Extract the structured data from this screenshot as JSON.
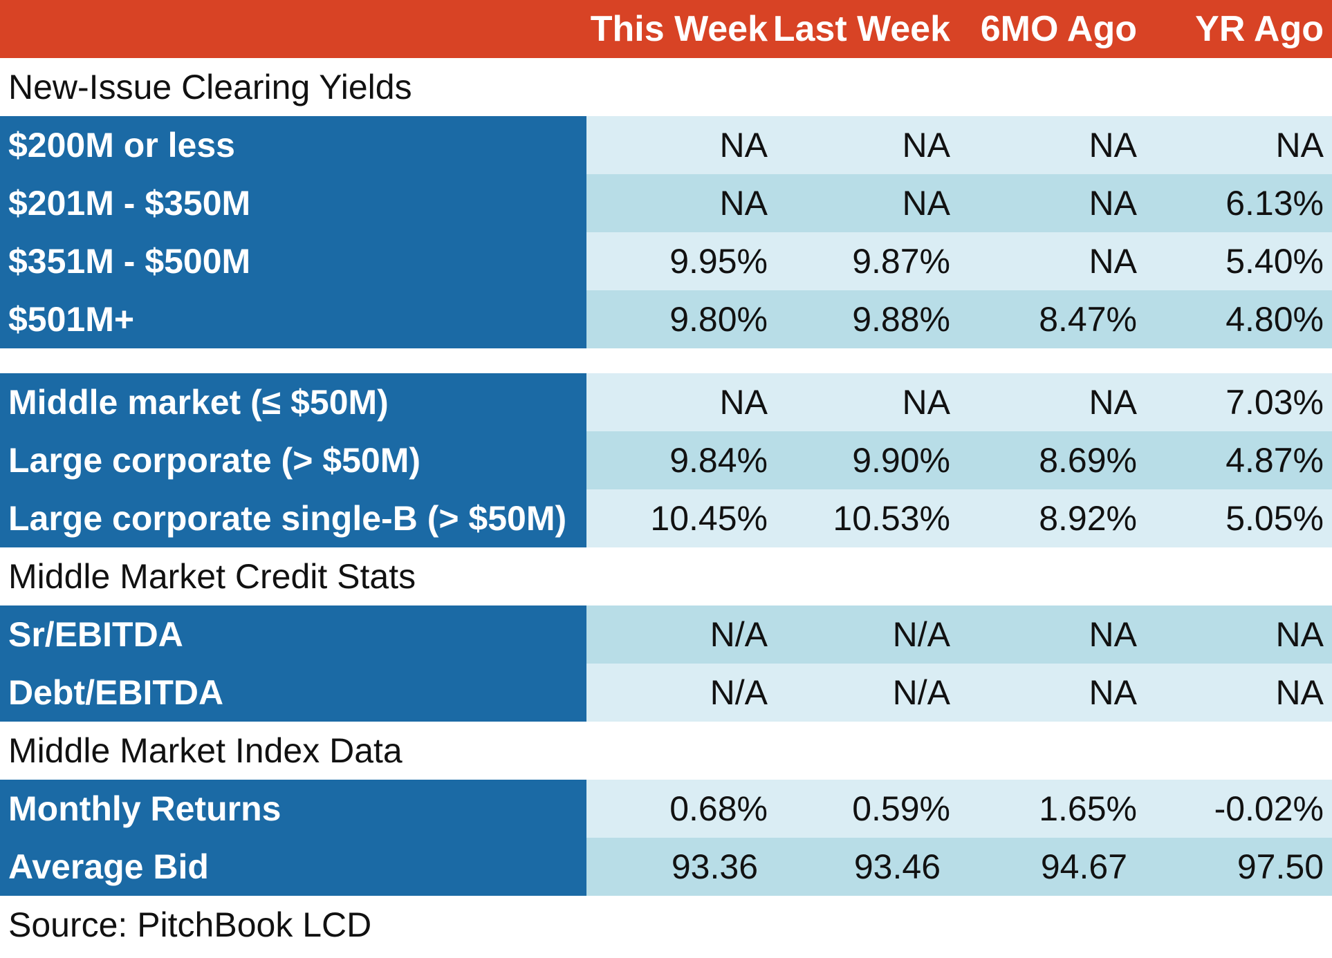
{
  "header": {
    "col1": "This Week",
    "col2": "Last Week",
    "col3": "6MO Ago",
    "col4": "YR Ago",
    "color": "#d84325"
  },
  "sections": {
    "new_issue": "New-Issue Clearing Yields",
    "credit_stats": "Middle Market Credit Stats",
    "index_data": "Middle Market Index Data"
  },
  "rows": [
    {
      "label": "$200M or less",
      "values": [
        "NA",
        "NA",
        "NA",
        "NA"
      ]
    },
    {
      "label": "$201M - $350M",
      "values": [
        "NA",
        "NA",
        "NA",
        "6.13%"
      ]
    },
    {
      "label": "$351M - $500M",
      "values": [
        "9.95%",
        "9.87%",
        "NA",
        "5.40%"
      ]
    },
    {
      "label": "$501M+",
      "values": [
        "9.80%",
        "9.88%",
        "8.47%",
        "4.80%"
      ]
    },
    {
      "label": "Middle market (≤ $50M)",
      "values": [
        "NA",
        "NA",
        "NA",
        "7.03%"
      ]
    },
    {
      "label": "Large corporate (> $50M)",
      "values": [
        "9.84%",
        "9.90%",
        "8.69%",
        "4.87%"
      ]
    },
    {
      "label": "Large corporate single-B (> $50M)",
      "values": [
        "10.45%",
        "10.53%",
        "8.92%",
        "5.05%"
      ]
    },
    {
      "label": "Sr/EBITDA",
      "values": [
        "N/A",
        "N/A",
        "NA",
        "NA"
      ]
    },
    {
      "label": "Debt/EBITDA",
      "values": [
        "N/A",
        "N/A",
        "NA",
        "NA"
      ]
    },
    {
      "label": "Monthly Returns",
      "values": [
        "0.68%",
        "0.59%",
        "1.65%",
        "-0.02%"
      ]
    },
    {
      "label": "Average Bid",
      "values": [
        "93.36",
        "93.46",
        "94.67",
        "97.50"
      ]
    }
  ],
  "source": "Source: PitchBook LCD",
  "colors": {
    "label_bg": "#1b6aa5",
    "row_light": "#daedf4",
    "row_dark": "#b8dde7"
  }
}
